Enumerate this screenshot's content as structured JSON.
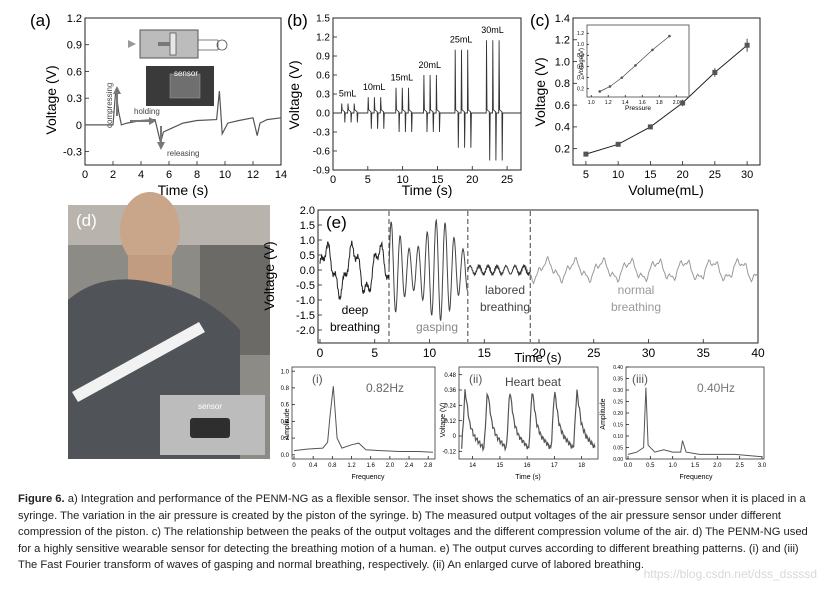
{
  "panels": {
    "a": {
      "label": "(a)",
      "xlabel": "Time (s)",
      "ylabel": "Voltage (V)",
      "xticks": [
        "0",
        "2",
        "4",
        "6",
        "8",
        "10",
        "12",
        "14"
      ],
      "yticks": [
        "1.2",
        "0.9",
        "0.6",
        "0.3",
        "0",
        "-0.3"
      ],
      "annotations": {
        "compressing": "compressing",
        "holding": "holding",
        "releasing": "releasing",
        "sensor": "sensor"
      }
    },
    "b": {
      "label": "(b)",
      "xlabel": "Time (s)",
      "ylabel": "Voltage (V)",
      "xticks": [
        "0",
        "5",
        "10",
        "15",
        "20",
        "25"
      ],
      "yticks": [
        "1.5",
        "1.2",
        "0.9",
        "0.6",
        "0.3",
        "0.0",
        "-0.3",
        "-0.6",
        "-0.9"
      ],
      "volume_labels": [
        "5mL",
        "10mL",
        "15mL",
        "20mL",
        "25mL",
        "30mL"
      ]
    },
    "c": {
      "label": "(c)",
      "xlabel": "Volume(mL)",
      "ylabel": "Voltage (V)",
      "xticks": [
        "5",
        "10",
        "15",
        "20",
        "25",
        "30"
      ],
      "yticks": [
        "1.4",
        "1.2",
        "1.0",
        "0.8",
        "0.6",
        "0.4",
        "0.2"
      ],
      "inset": {
        "xlabel": "Pressure",
        "ylabel": "Voltage(V)",
        "xticks": [
          "1.0",
          "1.2",
          "1.4",
          "1.6",
          "1.8",
          "2.0"
        ],
        "yticks": [
          "1.2",
          "1.0",
          "0.8",
          "0.6",
          "0.4",
          "0.2"
        ]
      }
    },
    "d": {
      "label": "(d)",
      "sensor_label": "sensor"
    },
    "e": {
      "label": "(e)",
      "xlabel": "Time (s)",
      "ylabel": "Voltage (V)",
      "xticks": [
        "0",
        "5",
        "10",
        "15",
        "20",
        "25",
        "30",
        "35",
        "40"
      ],
      "yticks": [
        "2.0",
        "1.5",
        "1.0",
        "0.5",
        "0.0",
        "-0.5",
        "-1.0",
        "-1.5",
        "-2.0"
      ],
      "regions": {
        "deep": {
          "line1": "deep",
          "line2": "breathing"
        },
        "gasping": "gasping",
        "labored": {
          "line1": "labored",
          "line2": "breathing"
        },
        "normal": {
          "line1": "normal",
          "line2": "breathing"
        }
      }
    },
    "i": {
      "label": "(i)",
      "peak": "0.82Hz",
      "xlabel": "Frequency",
      "ylabel": "Amplitude",
      "xticks": [
        "0",
        "0.4",
        "0.8",
        "1.2",
        "1.6",
        "2.0",
        "2.4",
        "2.8"
      ],
      "yticks": [
        "1.0",
        "0.8",
        "0.6",
        "0.4",
        "0.2",
        "0.0"
      ]
    },
    "ii": {
      "label": "(ii)",
      "title": "Heart beat",
      "xlabel": "Time (s)",
      "ylabel": "Voltage (V)",
      "xticks": [
        "14",
        "15",
        "16",
        "17",
        "18"
      ],
      "yticks": [
        "0.48",
        "0.36",
        "0.24",
        "0.12",
        "0",
        "-0.12"
      ]
    },
    "iii": {
      "label": "(iii)",
      "peak": "0.40Hz",
      "xlabel": "Frequency",
      "ylabel": "Amplitude",
      "xticks": [
        "0.0",
        "0.5",
        "1.0",
        "1.5",
        "2.0",
        "2.5",
        "3.0"
      ],
      "yticks": [
        "0.40",
        "0.35",
        "0.30",
        "0.25",
        "0.20",
        "0.15",
        "0.10",
        "0.05",
        "0.00"
      ]
    }
  },
  "chart_data": [
    {
      "type": "line",
      "panel": "a",
      "xlabel": "Time (s)",
      "ylabel": "Voltage (V)",
      "xlim": [
        0,
        14
      ],
      "ylim": [
        -0.45,
        1.2
      ],
      "x": [
        0,
        1.5,
        2.0,
        2.2,
        2.4,
        2.6,
        3.0,
        4.0,
        5.0,
        5.4,
        5.6,
        6.0,
        7.0,
        8.0,
        9.4,
        9.6,
        9.8,
        10.2,
        11.0,
        12.0,
        12.3,
        12.5,
        13.0,
        14.0
      ],
      "y": [
        0.0,
        0.0,
        0.0,
        0.4,
        0.15,
        0.0,
        0.02,
        0.05,
        0.06,
        -0.2,
        -0.08,
        -0.05,
        0.02,
        0.05,
        0.06,
        0.38,
        -0.1,
        0.02,
        0.05,
        0.08,
        -0.12,
        0.02,
        0.06,
        0.08
      ]
    },
    {
      "type": "line",
      "panel": "b",
      "xlabel": "Time (s)",
      "ylabel": "Voltage (V)",
      "xlim": [
        0,
        27
      ],
      "ylim": [
        -0.9,
        1.5
      ],
      "series": [
        {
          "name": "5mL",
          "peak": 0.15,
          "valley": -0.15
        },
        {
          "name": "10mL",
          "peak": 0.25,
          "valley": -0.25
        },
        {
          "name": "15mL",
          "peak": 0.4,
          "valley": -0.3
        },
        {
          "name": "20mL",
          "peak": 0.6,
          "valley": -0.3
        },
        {
          "name": "25mL",
          "peak": 1.0,
          "valley": -0.55
        },
        {
          "name": "30mL",
          "peak": 1.15,
          "valley": -0.75
        }
      ]
    },
    {
      "type": "line",
      "panel": "c",
      "xlabel": "Volume(mL)",
      "ylabel": "Voltage (V)",
      "xlim": [
        3,
        32
      ],
      "ylim": [
        0.05,
        1.4
      ],
      "x": [
        5,
        10,
        15,
        20,
        25,
        30
      ],
      "y": [
        0.15,
        0.24,
        0.4,
        0.62,
        0.9,
        1.15
      ],
      "yerr": [
        0.01,
        0.02,
        0.02,
        0.03,
        0.04,
        0.06
      ],
      "inset": {
        "xlabel": "Pressure",
        "ylabel": "Voltage(V)",
        "x": [
          1.1,
          1.22,
          1.36,
          1.52,
          1.72,
          1.92
        ],
        "y": [
          0.15,
          0.24,
          0.4,
          0.62,
          0.9,
          1.15
        ]
      }
    },
    {
      "type": "line",
      "panel": "e",
      "xlabel": "Time (s)",
      "ylabel": "Voltage (V)",
      "xlim": [
        0,
        40
      ],
      "ylim": [
        -2.0,
        2.0
      ],
      "segments": [
        {
          "label": "deep breathing",
          "x_range": [
            0,
            6.3
          ],
          "amplitude": 0.7
        },
        {
          "label": "gasping",
          "x_range": [
            6.3,
            13.5
          ],
          "amplitude": 1.7
        },
        {
          "label": "labored breathing",
          "x_range": [
            13.5,
            19.2
          ],
          "amplitude": 0.15
        },
        {
          "label": "normal breathing",
          "x_range": [
            19.2,
            40
          ],
          "amplitude": 0.3
        }
      ]
    },
    {
      "type": "line",
      "panel": "i",
      "xlabel": "Frequency",
      "ylabel": "Amplitude",
      "xlim": [
        0,
        2.9
      ],
      "ylim": [
        -0.05,
        1.05
      ],
      "x": [
        0,
        0.3,
        0.6,
        0.7,
        0.75,
        0.82,
        0.9,
        1.0,
        1.2,
        1.35,
        1.5,
        1.8,
        2.2,
        2.6,
        2.9
      ],
      "y": [
        0.05,
        0.07,
        0.08,
        0.15,
        0.45,
        0.82,
        0.2,
        0.08,
        0.12,
        0.14,
        0.06,
        0.05,
        0.04,
        0.04,
        0.03
      ]
    },
    {
      "type": "line",
      "panel": "ii",
      "xlabel": "Time (s)",
      "ylabel": "Voltage (V)",
      "xlim": [
        13.5,
        18.6
      ],
      "ylim": [
        -0.18,
        0.54
      ],
      "period": 0.82,
      "peak": 0.36,
      "valley": -0.1
    },
    {
      "type": "line",
      "panel": "iii",
      "xlabel": "Frequency",
      "ylabel": "Amplitude",
      "xlim": [
        0,
        3.0
      ],
      "ylim": [
        0,
        0.4
      ],
      "x": [
        0,
        0.2,
        0.35,
        0.4,
        0.45,
        0.6,
        0.8,
        1.0,
        1.18,
        1.22,
        1.3,
        1.6,
        2.0,
        2.4,
        3.0
      ],
      "y": [
        0.02,
        0.03,
        0.05,
        0.31,
        0.06,
        0.03,
        0.04,
        0.03,
        0.03,
        0.08,
        0.03,
        0.02,
        0.02,
        0.02,
        0.01
      ]
    }
  ],
  "caption": {
    "label": "Figure 6.",
    "text": " a) Integration and performance of the PENM-NG as a flexible sensor. The inset shows the schematics of an air-pressure sensor when it is placed in a syringe. The variation in the air pressure is created by the piston of the syringe. b) The measured output voltages of the air pressure sensor under different compression of the piston. c) The relationship between the peaks of the output voltages and the different compression volume of the air. d) The PENM-NG used for a highly sensitive wearable sensor for detecting the breathing motion of a human. e) The output curves according to different breathing patterns. (i) and (iii) The Fast Fourier transform of waves of gasping and normal breathing, respectively. (ii) An enlarged curve of labored breathing."
  },
  "watermark": "https://blog.csdn.net/dss_dssssd"
}
